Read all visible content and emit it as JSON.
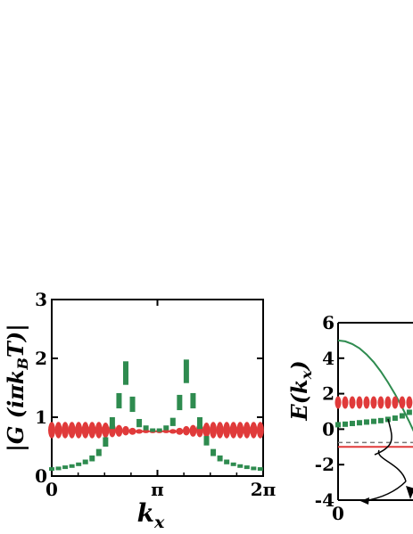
{
  "chart_data": [
    {
      "type": "scatter",
      "title": "",
      "xlabel": "k_x",
      "ylabel": "|G (iπk_B T)|",
      "xlim": [
        0,
        6.2832
      ],
      "ylim": [
        0,
        3
      ],
      "xticks": [
        "0",
        "π",
        "2π"
      ],
      "yticks": [
        "0",
        "1",
        "2",
        "3"
      ],
      "grid": false,
      "series": [
        {
          "color": "#e03a3a",
          "marker": "ellipse",
          "x": [
            0.0,
            0.2,
            0.4,
            0.6,
            0.8,
            1.0,
            1.2,
            1.4,
            1.6,
            1.8,
            2.0,
            2.2,
            2.4,
            2.6,
            2.8,
            3.0,
            3.2,
            3.4,
            3.6,
            3.8,
            4.0,
            4.2,
            4.4,
            4.6,
            4.8,
            5.0,
            5.2,
            5.4,
            5.6,
            5.8,
            6.0,
            6.2
          ],
          "y": [
            0.78,
            0.78,
            0.78,
            0.78,
            0.78,
            0.78,
            0.78,
            0.78,
            0.78,
            0.78,
            0.77,
            0.77,
            0.76,
            0.76,
            0.76,
            0.76,
            0.76,
            0.76,
            0.76,
            0.76,
            0.77,
            0.77,
            0.78,
            0.78,
            0.78,
            0.78,
            0.78,
            0.78,
            0.78,
            0.78,
            0.78,
            0.78
          ],
          "spread": [
            0.14,
            0.14,
            0.14,
            0.14,
            0.14,
            0.14,
            0.14,
            0.14,
            0.13,
            0.12,
            0.1,
            0.08,
            0.06,
            0.04,
            0.03,
            0.02,
            0.02,
            0.03,
            0.04,
            0.06,
            0.08,
            0.1,
            0.12,
            0.13,
            0.14,
            0.14,
            0.14,
            0.14,
            0.14,
            0.14,
            0.14,
            0.14
          ]
        },
        {
          "color": "#2e8b4f",
          "marker": "square",
          "x": [
            0.0,
            0.2,
            0.4,
            0.6,
            0.8,
            1.0,
            1.2,
            1.4,
            1.6,
            1.8,
            2.0,
            2.2,
            2.4,
            2.6,
            2.8,
            3.0,
            3.2,
            3.4,
            3.6,
            3.8,
            4.0,
            4.2,
            4.4,
            4.6,
            4.8,
            5.0,
            5.2,
            5.4,
            5.6,
            5.8,
            6.0,
            6.2
          ],
          "y": [
            0.12,
            0.13,
            0.15,
            0.17,
            0.2,
            0.24,
            0.3,
            0.4,
            0.58,
            0.9,
            1.28,
            1.75,
            1.22,
            0.9,
            0.82,
            0.78,
            0.78,
            0.82,
            0.92,
            1.25,
            1.78,
            1.28,
            0.9,
            0.6,
            0.4,
            0.3,
            0.24,
            0.2,
            0.17,
            0.15,
            0.13,
            0.12
          ],
          "spread": [
            0.03,
            0.03,
            0.03,
            0.03,
            0.03,
            0.04,
            0.05,
            0.06,
            0.08,
            0.1,
            0.13,
            0.2,
            0.13,
            0.07,
            0.04,
            0.03,
            0.03,
            0.04,
            0.07,
            0.13,
            0.2,
            0.13,
            0.1,
            0.08,
            0.06,
            0.05,
            0.04,
            0.03,
            0.03,
            0.03,
            0.03,
            0.03
          ]
        }
      ]
    },
    {
      "type": "line",
      "title": "",
      "xlabel": "",
      "ylabel": "E(k_x)",
      "xlim": [
        0,
        3.1416
      ],
      "ylim": [
        -4,
        6
      ],
      "xticks": [
        "0"
      ],
      "yticks": [
        "-4",
        "-2",
        "0",
        "2",
        "4",
        "6"
      ],
      "grid": false,
      "series": [
        {
          "color": "#2e8b4f",
          "style": "line",
          "x": [
            0.0,
            0.1,
            0.2,
            0.3,
            0.4,
            0.5,
            0.6,
            0.7,
            0.8,
            0.9,
            1.0,
            1.1,
            1.2
          ],
          "y": [
            5.0,
            4.95,
            4.8,
            4.56,
            4.21,
            3.78,
            3.25,
            2.64,
            1.97,
            1.22,
            0.41,
            -0.45,
            -1.38
          ]
        },
        {
          "color": "#e03a3a",
          "style": "ellipse-markers",
          "x": [
            0.0,
            0.1,
            0.2,
            0.3,
            0.4,
            0.5,
            0.6,
            0.7,
            0.8,
            0.9,
            1.0,
            1.1,
            1.2
          ],
          "y": [
            1.5,
            1.5,
            1.5,
            1.5,
            1.5,
            1.5,
            1.5,
            1.5,
            1.5,
            1.5,
            1.5,
            1.5,
            1.5
          ]
        },
        {
          "color": "#2e8b4f",
          "style": "square-markers",
          "x": [
            0.0,
            0.1,
            0.2,
            0.3,
            0.4,
            0.5,
            0.6,
            0.7,
            0.8,
            0.9,
            1.0
          ],
          "y": [
            0.25,
            0.28,
            0.32,
            0.36,
            0.4,
            0.44,
            0.48,
            0.55,
            0.62,
            0.75,
            0.95
          ]
        },
        {
          "color": "#e03a3a",
          "style": "hline",
          "y": -1.0
        },
        {
          "color": "#777777",
          "style": "dashed-hline",
          "y": -0.75
        }
      ]
    }
  ]
}
